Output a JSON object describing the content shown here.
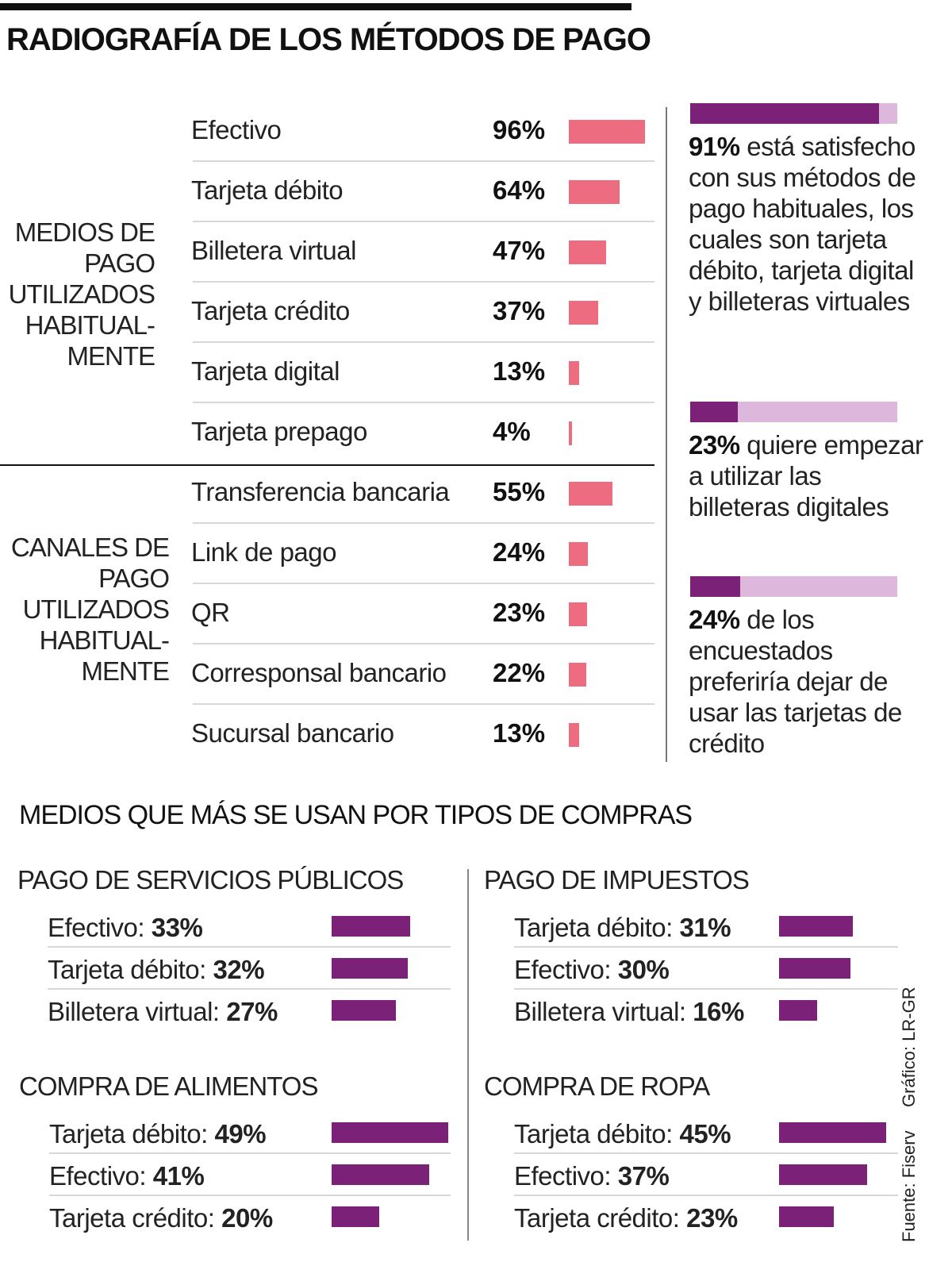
{
  "title": "RADIOGRAFÍA DE LOS MÉTODOS DE PAGO",
  "colors": {
    "pink": "#ED6C80",
    "purple": "#7B2278",
    "light_purple": "#DDB8DC"
  },
  "chart_data": [
    {
      "type": "bar",
      "orientation": "horizontal",
      "group": "MEDIOS DE PAGO UTILIZADOS HABITUAL- MENTE",
      "categories": [
        "Efectivo",
        "Tarjeta débito",
        "Billetera virtual",
        "Tarjeta crédito",
        "Tarjeta digital",
        "Tarjeta prepago"
      ],
      "values": [
        96,
        64,
        47,
        37,
        13,
        4
      ],
      "labels": [
        "96%",
        "64%",
        "47%",
        "37%",
        "13%",
        "4%"
      ]
    },
    {
      "type": "bar",
      "orientation": "horizontal",
      "group": "CANALES DE PAGO UTILIZADOS HABITUAL- MENTE",
      "categories": [
        "Transferencia bancaria",
        "Link de pago",
        "QR",
        "Corresponsal bancario",
        "Sucursal bancario"
      ],
      "values": [
        55,
        24,
        23,
        22,
        13
      ],
      "labels": [
        "55%",
        "24%",
        "23%",
        "22%",
        "13%"
      ]
    },
    {
      "type": "bar",
      "title": "PAGO DE SERVICIOS PÚBLICOS",
      "categories": [
        "Efectivo:",
        "Tarjeta débito:",
        "Billetera virtual:"
      ],
      "values": [
        33,
        32,
        27
      ],
      "labels": [
        "33%",
        "32%",
        "27%"
      ]
    },
    {
      "type": "bar",
      "title": "PAGO DE IMPUESTOS",
      "categories": [
        "Tarjeta débito:",
        "Efectivo:",
        "Billetera virtual:"
      ],
      "values": [
        31,
        30,
        16
      ],
      "labels": [
        "31%",
        "30%",
        "16%"
      ]
    },
    {
      "type": "bar",
      "title": "COMPRA DE ALIMENTOS",
      "categories": [
        "Tarjeta débito:",
        "Efectivo:",
        "Tarjeta crédito:"
      ],
      "values": [
        49,
        41,
        20
      ],
      "labels": [
        "49%",
        "41%",
        "20%"
      ]
    },
    {
      "type": "bar",
      "title": "COMPRA DE ROPA",
      "categories": [
        "Tarjeta débito:",
        "Efectivo:",
        "Tarjeta crédito:"
      ],
      "values": [
        45,
        37,
        23
      ],
      "labels": [
        "45%",
        "37%",
        "23%"
      ]
    }
  ],
  "notes": [
    {
      "value": 91,
      "pct": "91%",
      "text": " está satisfecho con sus métodos de pago habituales, los cuales son tarjeta débito, tarjeta digital y billeteras virtuales"
    },
    {
      "value": 23,
      "pct": "23%",
      "text": " quiere empezar a utilizar las billeteras digitales"
    },
    {
      "value": 24,
      "pct": "24%",
      "text": " de los encuestados preferiría dejar de usar las tarjetas de crédito"
    }
  ],
  "subtitle": "MEDIOS QUE MÁS SE USAN POR TIPOS DE COMPRAS",
  "source": "Fuente: Fiserv",
  "credit": "Gráfico: LR-GR"
}
